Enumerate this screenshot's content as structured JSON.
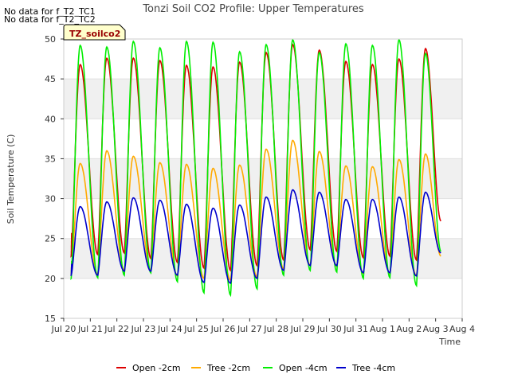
{
  "chart_data": {
    "type": "line",
    "title": "Tonzi Soil CO2 Profile: Upper Temperatures",
    "xlabel": "Time",
    "ylabel": "Soil Temperature (C)",
    "ylim": [
      15,
      50
    ],
    "yticks": [
      15,
      20,
      25,
      30,
      35,
      40,
      45,
      50
    ],
    "xlim": [
      0,
      15
    ],
    "xticks": [
      {
        "x": 0,
        "label": "Jul 20"
      },
      {
        "x": 1,
        "label": "Jul 21"
      },
      {
        "x": 2,
        "label": "Jul 22"
      },
      {
        "x": 3,
        "label": "Jul 23"
      },
      {
        "x": 4,
        "label": "Jul 24"
      },
      {
        "x": 5,
        "label": "Jul 25"
      },
      {
        "x": 6,
        "label": "Jul 26"
      },
      {
        "x": 7,
        "label": "Jul 27"
      },
      {
        "x": 8,
        "label": "Jul 28"
      },
      {
        "x": 9,
        "label": "Jul 29"
      },
      {
        "x": 10,
        "label": "Jul 30"
      },
      {
        "x": 11,
        "label": "Jul 31"
      },
      {
        "x": 12,
        "label": "Aug 1"
      },
      {
        "x": 13,
        "label": "Aug 2"
      },
      {
        "x": 14,
        "label": "Aug 3"
      },
      {
        "x": 15,
        "label": "Aug 4"
      }
    ],
    "bands": [
      [
        20,
        25
      ],
      [
        30,
        35
      ],
      [
        40,
        45
      ]
    ],
    "band_color": "#f0f0f0",
    "no_data_messages": [
      "No data for f_T2_TC1",
      "No data for f_T2_TC2"
    ],
    "tag_label": "TZ_soilco2",
    "legend_position": "bottom",
    "series": [
      {
        "name": "Open -2cm",
        "color": "#dd0000",
        "start": 0.3,
        "end": 14.2,
        "start_val": 25.7,
        "mins": [
          22.8,
          23.0,
          23.2,
          22.5,
          22.0,
          21.3,
          21.0,
          21.6,
          22.3,
          23.6,
          23.4,
          22.6,
          22.8,
          22.3,
          22.0
        ],
        "maxs": [
          46.8,
          47.6,
          47.6,
          47.3,
          46.7,
          46.5,
          47.1,
          48.3,
          49.3,
          48.6,
          47.2,
          46.8,
          47.5,
          48.8
        ],
        "end_val": 27.2
      },
      {
        "name": "Tree -2cm",
        "color": "#ffaa00",
        "start": 0.3,
        "end": 14.2,
        "start_val": 22.0,
        "mins": [
          20.5,
          20.5,
          21.0,
          21.0,
          20.3,
          20.0,
          19.8,
          20.2,
          21.2,
          21.6,
          21.5,
          20.6,
          20.6,
          20.3,
          20.2
        ],
        "maxs": [
          34.4,
          36.0,
          35.3,
          34.5,
          34.3,
          33.8,
          34.2,
          36.2,
          37.3,
          35.9,
          34.1,
          34.0,
          34.9,
          35.6
        ],
        "end_val": 22.8
      },
      {
        "name": "Open -4cm",
        "color": "#00ee00",
        "start": 0.3,
        "end": 14.2,
        "start_val": 22.2,
        "mins": [
          20.0,
          20.1,
          20.4,
          20.7,
          19.6,
          18.2,
          17.9,
          18.7,
          20.4,
          21.0,
          20.8,
          20.0,
          20.1,
          19.1,
          19.5
        ],
        "maxs": [
          49.2,
          49.0,
          49.7,
          48.9,
          49.7,
          49.6,
          48.4,
          49.3,
          49.9,
          48.3,
          49.4,
          49.2,
          49.9,
          48.2
        ],
        "end_val": 23.4
      },
      {
        "name": "Tree -4cm",
        "color": "#0000cc",
        "start": 0.3,
        "end": 14.2,
        "start_val": 21.8,
        "mins": [
          20.4,
          20.4,
          20.9,
          20.9,
          20.4,
          19.5,
          19.4,
          20.0,
          21.0,
          21.6,
          21.6,
          20.7,
          20.7,
          20.3,
          20.4
        ],
        "maxs": [
          29.0,
          29.6,
          30.1,
          29.8,
          29.3,
          28.8,
          29.2,
          30.2,
          31.1,
          30.8,
          29.9,
          29.9,
          30.2,
          30.8
        ],
        "end_val": 23.2
      }
    ]
  }
}
